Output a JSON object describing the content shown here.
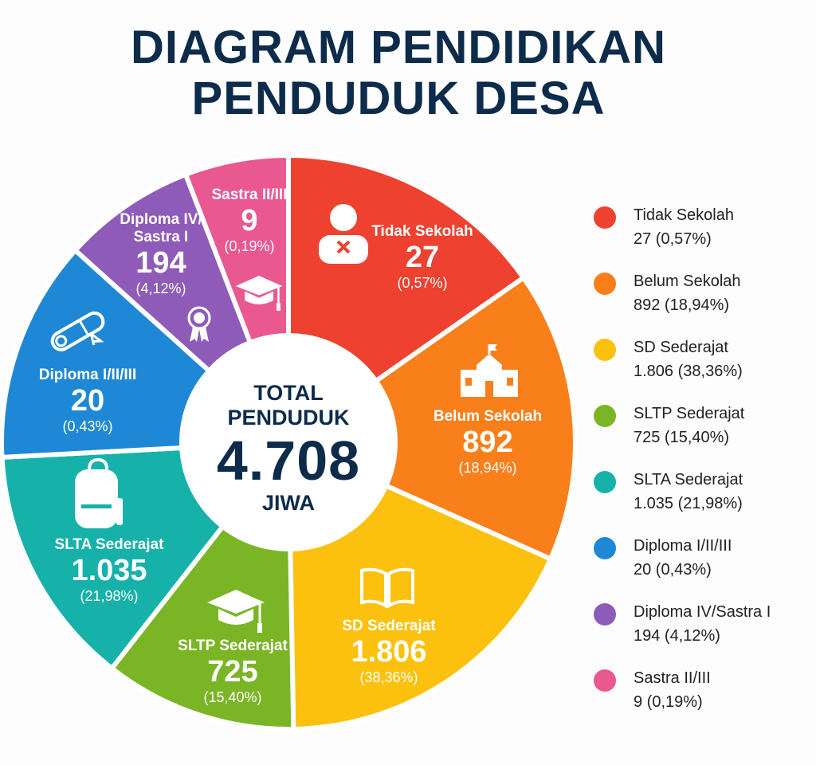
{
  "title_line1": "DIAGRAM PENDIDIKAN",
  "title_line2": "PENDUDUK DESA",
  "center": {
    "label1": "TOTAL",
    "label2": "PENDUDUK",
    "total": "4.708",
    "unit": "JIWA"
  },
  "chart_data": {
    "type": "pie",
    "donut": true,
    "title": "DIAGRAM PENDIDIKAN PENDUDUK DESA",
    "total": 4708,
    "legend_position": "right",
    "categories": [
      "Tidak Sekolah",
      "Belum Sekolah",
      "SD Sederajat",
      "SLTP Sederajat",
      "SLTA Sederajat",
      "Diploma I/II/III",
      "Diploma IV/Sastra I",
      "Sastra II/III"
    ],
    "values": [
      27,
      892,
      1806,
      725,
      1035,
      20,
      194,
      9
    ],
    "percents": [
      0.57,
      18.94,
      38.36,
      15.4,
      21.98,
      0.43,
      4.12,
      0.19
    ],
    "colors": [
      "#ee4130",
      "#f97f1a",
      "#fcc10e",
      "#7ab526",
      "#16b2aa",
      "#1f88d6",
      "#8e5cb8",
      "#e9588f"
    ]
  },
  "slices": [
    {
      "name": "Tidak Sekolah",
      "value": "27",
      "pct": "(0,57%)",
      "icon": "person-x-icon"
    },
    {
      "name": "Belum Sekolah",
      "value": "892",
      "pct": "(18,94%)",
      "icon": "school-building-icon"
    },
    {
      "name": "SD Sederajat",
      "value": "1.806",
      "pct": "(38,36%)",
      "icon": "open-book-icon"
    },
    {
      "name": "SLTP Sederajat",
      "value": "725",
      "pct": "(15,40%)",
      "icon": "graduation-cap-icon"
    },
    {
      "name": "SLTA Sederajat",
      "value": "1.035",
      "pct": "(21,98%)",
      "icon": "backpack-icon"
    },
    {
      "name": "Diploma I/II/III",
      "value": "20",
      "pct": "(0,43%)",
      "icon": "diploma-scroll-icon"
    },
    {
      "name_l1": "Diploma IV/",
      "name_l2": "Sastra I",
      "value": "194",
      "pct": "(4,12%)",
      "icon": "award-ribbon-icon"
    },
    {
      "name": "Sastra II/III",
      "value": "9",
      "pct": "(0,19%)",
      "icon": "graduation-cap-icon"
    }
  ],
  "legend": [
    {
      "name": "Tidak Sekolah",
      "value": "27  (0,57%)"
    },
    {
      "name": "Belum Sekolah",
      "value": "892  (18,94%)"
    },
    {
      "name": "SD Sederajat",
      "value": "1.806  (38,36%)"
    },
    {
      "name": "SLTP Sederajat",
      "value": "725  (15,40%)"
    },
    {
      "name": "SLTA Sederajat",
      "value": "1.035  (21,98%)"
    },
    {
      "name": "Diploma I/II/III",
      "value": "20  (0,43%)"
    },
    {
      "name": "Diploma IV/Sastra I",
      "value": "194  (4,12%)"
    },
    {
      "name": "Sastra II/III",
      "value": "9  (0,19%)"
    }
  ]
}
